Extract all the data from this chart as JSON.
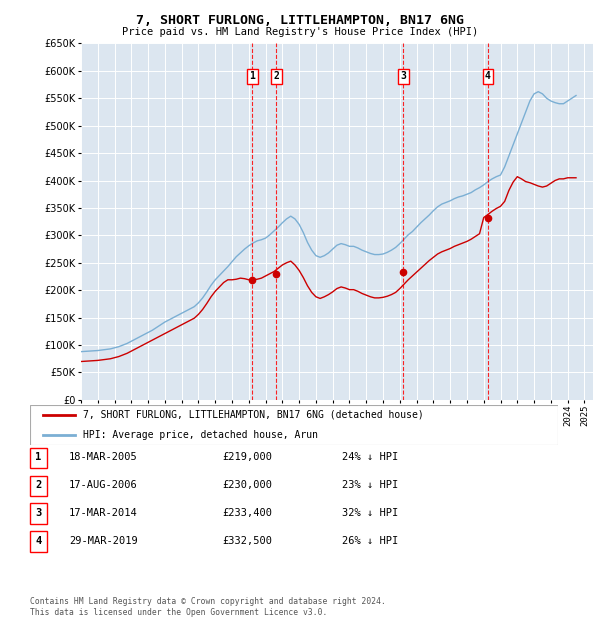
{
  "title": "7, SHORT FURLONG, LITTLEHAMPTON, BN17 6NG",
  "subtitle": "Price paid vs. HM Land Registry's House Price Index (HPI)",
  "plot_bg_color": "#dce6f0",
  "ylim": [
    0,
    650000
  ],
  "yticks": [
    0,
    50000,
    100000,
    150000,
    200000,
    250000,
    300000,
    350000,
    400000,
    450000,
    500000,
    550000,
    600000,
    650000
  ],
  "xlim_start": 1995.0,
  "xlim_end": 2025.5,
  "xticks": [
    1995,
    1996,
    1997,
    1998,
    1999,
    2000,
    2001,
    2002,
    2003,
    2004,
    2005,
    2006,
    2007,
    2008,
    2009,
    2010,
    2011,
    2012,
    2013,
    2014,
    2015,
    2016,
    2017,
    2018,
    2019,
    2020,
    2021,
    2022,
    2023,
    2024,
    2025
  ],
  "hpi_x": [
    1995.0,
    1995.25,
    1995.5,
    1995.75,
    1996.0,
    1996.25,
    1996.5,
    1996.75,
    1997.0,
    1997.25,
    1997.5,
    1997.75,
    1998.0,
    1998.25,
    1998.5,
    1998.75,
    1999.0,
    1999.25,
    1999.5,
    1999.75,
    2000.0,
    2000.25,
    2000.5,
    2000.75,
    2001.0,
    2001.25,
    2001.5,
    2001.75,
    2002.0,
    2002.25,
    2002.5,
    2002.75,
    2003.0,
    2003.25,
    2003.5,
    2003.75,
    2004.0,
    2004.25,
    2004.5,
    2004.75,
    2005.0,
    2005.25,
    2005.5,
    2005.75,
    2006.0,
    2006.25,
    2006.5,
    2006.75,
    2007.0,
    2007.25,
    2007.5,
    2007.75,
    2008.0,
    2008.25,
    2008.5,
    2008.75,
    2009.0,
    2009.25,
    2009.5,
    2009.75,
    2010.0,
    2010.25,
    2010.5,
    2010.75,
    2011.0,
    2011.25,
    2011.5,
    2011.75,
    2012.0,
    2012.25,
    2012.5,
    2012.75,
    2013.0,
    2013.25,
    2013.5,
    2013.75,
    2014.0,
    2014.25,
    2014.5,
    2014.75,
    2015.0,
    2015.25,
    2015.5,
    2015.75,
    2016.0,
    2016.25,
    2016.5,
    2016.75,
    2017.0,
    2017.25,
    2017.5,
    2017.75,
    2018.0,
    2018.25,
    2018.5,
    2018.75,
    2019.0,
    2019.25,
    2019.5,
    2019.75,
    2020.0,
    2020.25,
    2020.5,
    2020.75,
    2021.0,
    2021.25,
    2021.5,
    2021.75,
    2022.0,
    2022.25,
    2022.5,
    2022.75,
    2023.0,
    2023.25,
    2023.5,
    2023.75,
    2024.0,
    2024.25,
    2024.5
  ],
  "hpi_y": [
    88000,
    88500,
    89000,
    89500,
    90000,
    91000,
    92000,
    93000,
    95000,
    97000,
    100000,
    103000,
    107000,
    111000,
    115000,
    119000,
    123000,
    127000,
    132000,
    137000,
    142000,
    146000,
    150000,
    154000,
    158000,
    162000,
    166000,
    170000,
    177000,
    186000,
    197000,
    209000,
    219000,
    227000,
    235000,
    243000,
    252000,
    261000,
    268000,
    275000,
    281000,
    286000,
    290000,
    292000,
    295000,
    301000,
    308000,
    315000,
    323000,
    330000,
    335000,
    330000,
    320000,
    305000,
    287000,
    273000,
    263000,
    260000,
    263000,
    268000,
    275000,
    282000,
    285000,
    283000,
    280000,
    280000,
    277000,
    273000,
    270000,
    267000,
    265000,
    265000,
    266000,
    269000,
    273000,
    278000,
    285000,
    293000,
    301000,
    307000,
    315000,
    323000,
    330000,
    337000,
    345000,
    352000,
    357000,
    360000,
    363000,
    367000,
    370000,
    372000,
    375000,
    378000,
    383000,
    387000,
    392000,
    398000,
    403000,
    407000,
    410000,
    425000,
    445000,
    465000,
    485000,
    505000,
    525000,
    545000,
    558000,
    562000,
    558000,
    550000,
    545000,
    542000,
    540000,
    540000,
    545000,
    550000,
    555000
  ],
  "property_x": [
    1995.0,
    1995.25,
    1995.5,
    1995.75,
    1996.0,
    1996.25,
    1996.5,
    1996.75,
    1997.0,
    1997.25,
    1997.5,
    1997.75,
    1998.0,
    1998.25,
    1998.5,
    1998.75,
    1999.0,
    1999.25,
    1999.5,
    1999.75,
    2000.0,
    2000.25,
    2000.5,
    2000.75,
    2001.0,
    2001.25,
    2001.5,
    2001.75,
    2002.0,
    2002.25,
    2002.5,
    2002.75,
    2003.0,
    2003.25,
    2003.5,
    2003.75,
    2004.0,
    2004.25,
    2004.5,
    2004.75,
    2005.0,
    2005.25,
    2005.5,
    2005.75,
    2006.0,
    2006.25,
    2006.5,
    2006.75,
    2007.0,
    2007.25,
    2007.5,
    2007.75,
    2008.0,
    2008.25,
    2008.5,
    2008.75,
    2009.0,
    2009.25,
    2009.5,
    2009.75,
    2010.0,
    2010.25,
    2010.5,
    2010.75,
    2011.0,
    2011.25,
    2011.5,
    2011.75,
    2012.0,
    2012.25,
    2012.5,
    2012.75,
    2013.0,
    2013.25,
    2013.5,
    2013.75,
    2014.0,
    2014.25,
    2014.5,
    2014.75,
    2015.0,
    2015.25,
    2015.5,
    2015.75,
    2016.0,
    2016.25,
    2016.5,
    2016.75,
    2017.0,
    2017.25,
    2017.5,
    2017.75,
    2018.0,
    2018.25,
    2018.5,
    2018.75,
    2019.0,
    2019.25,
    2019.5,
    2019.75,
    2020.0,
    2020.25,
    2020.5,
    2020.75,
    2021.0,
    2021.25,
    2021.5,
    2021.75,
    2022.0,
    2022.25,
    2022.5,
    2022.75,
    2023.0,
    2023.25,
    2023.5,
    2023.75,
    2024.0,
    2024.25,
    2024.5
  ],
  "property_y": [
    70000,
    70500,
    71000,
    71500,
    72000,
    73000,
    74000,
    75000,
    77000,
    79000,
    82000,
    85000,
    89000,
    93000,
    97000,
    101000,
    105000,
    109000,
    113000,
    117000,
    121000,
    125000,
    129000,
    133000,
    137000,
    141000,
    145000,
    149000,
    156000,
    165000,
    176000,
    188000,
    198000,
    206000,
    214000,
    219000,
    219000,
    220000,
    222000,
    221000,
    219000,
    219000,
    220000,
    222000,
    226000,
    230000,
    234000,
    240000,
    246000,
    250000,
    253000,
    246000,
    236000,
    223000,
    208000,
    196000,
    188000,
    185000,
    188000,
    192000,
    197000,
    203000,
    206000,
    204000,
    201000,
    201000,
    198000,
    194000,
    191000,
    188000,
    186000,
    186000,
    187000,
    189000,
    192000,
    196000,
    203000,
    211000,
    219000,
    226000,
    233000,
    240000,
    247000,
    254000,
    260000,
    266000,
    270000,
    273000,
    276000,
    280000,
    283000,
    286000,
    289000,
    293000,
    298000,
    303000,
    332500,
    338000,
    344000,
    349000,
    353000,
    362000,
    382000,
    397000,
    407000,
    403000,
    398000,
    396000,
    393000,
    390000,
    388000,
    390000,
    395000,
    400000,
    403000,
    403000,
    405000,
    405000,
    405000
  ],
  "transactions": [
    {
      "num": 1,
      "x": 2005.21,
      "price": 219000,
      "label": "1",
      "date": "18-MAR-2005",
      "price_str": "£219,000",
      "hpi_pct": "24% ↓ HPI"
    },
    {
      "num": 2,
      "x": 2006.63,
      "price": 230000,
      "label": "2",
      "date": "17-AUG-2006",
      "price_str": "£230,000",
      "hpi_pct": "23% ↓ HPI"
    },
    {
      "num": 3,
      "x": 2014.21,
      "price": 233400,
      "label": "3",
      "date": "17-MAR-2014",
      "price_str": "£233,400",
      "hpi_pct": "32% ↓ HPI"
    },
    {
      "num": 4,
      "x": 2019.25,
      "price": 332500,
      "label": "4",
      "date": "29-MAR-2019",
      "price_str": "£332,500",
      "hpi_pct": "26% ↓ HPI"
    }
  ],
  "legend_line1": "7, SHORT FURLONG, LITTLEHAMPTON, BN17 6NG (detached house)",
  "legend_line2": "HPI: Average price, detached house, Arun",
  "red_color": "#cc0000",
  "blue_color": "#7bafd4",
  "footer": "Contains HM Land Registry data © Crown copyright and database right 2024.\nThis data is licensed under the Open Government Licence v3.0."
}
